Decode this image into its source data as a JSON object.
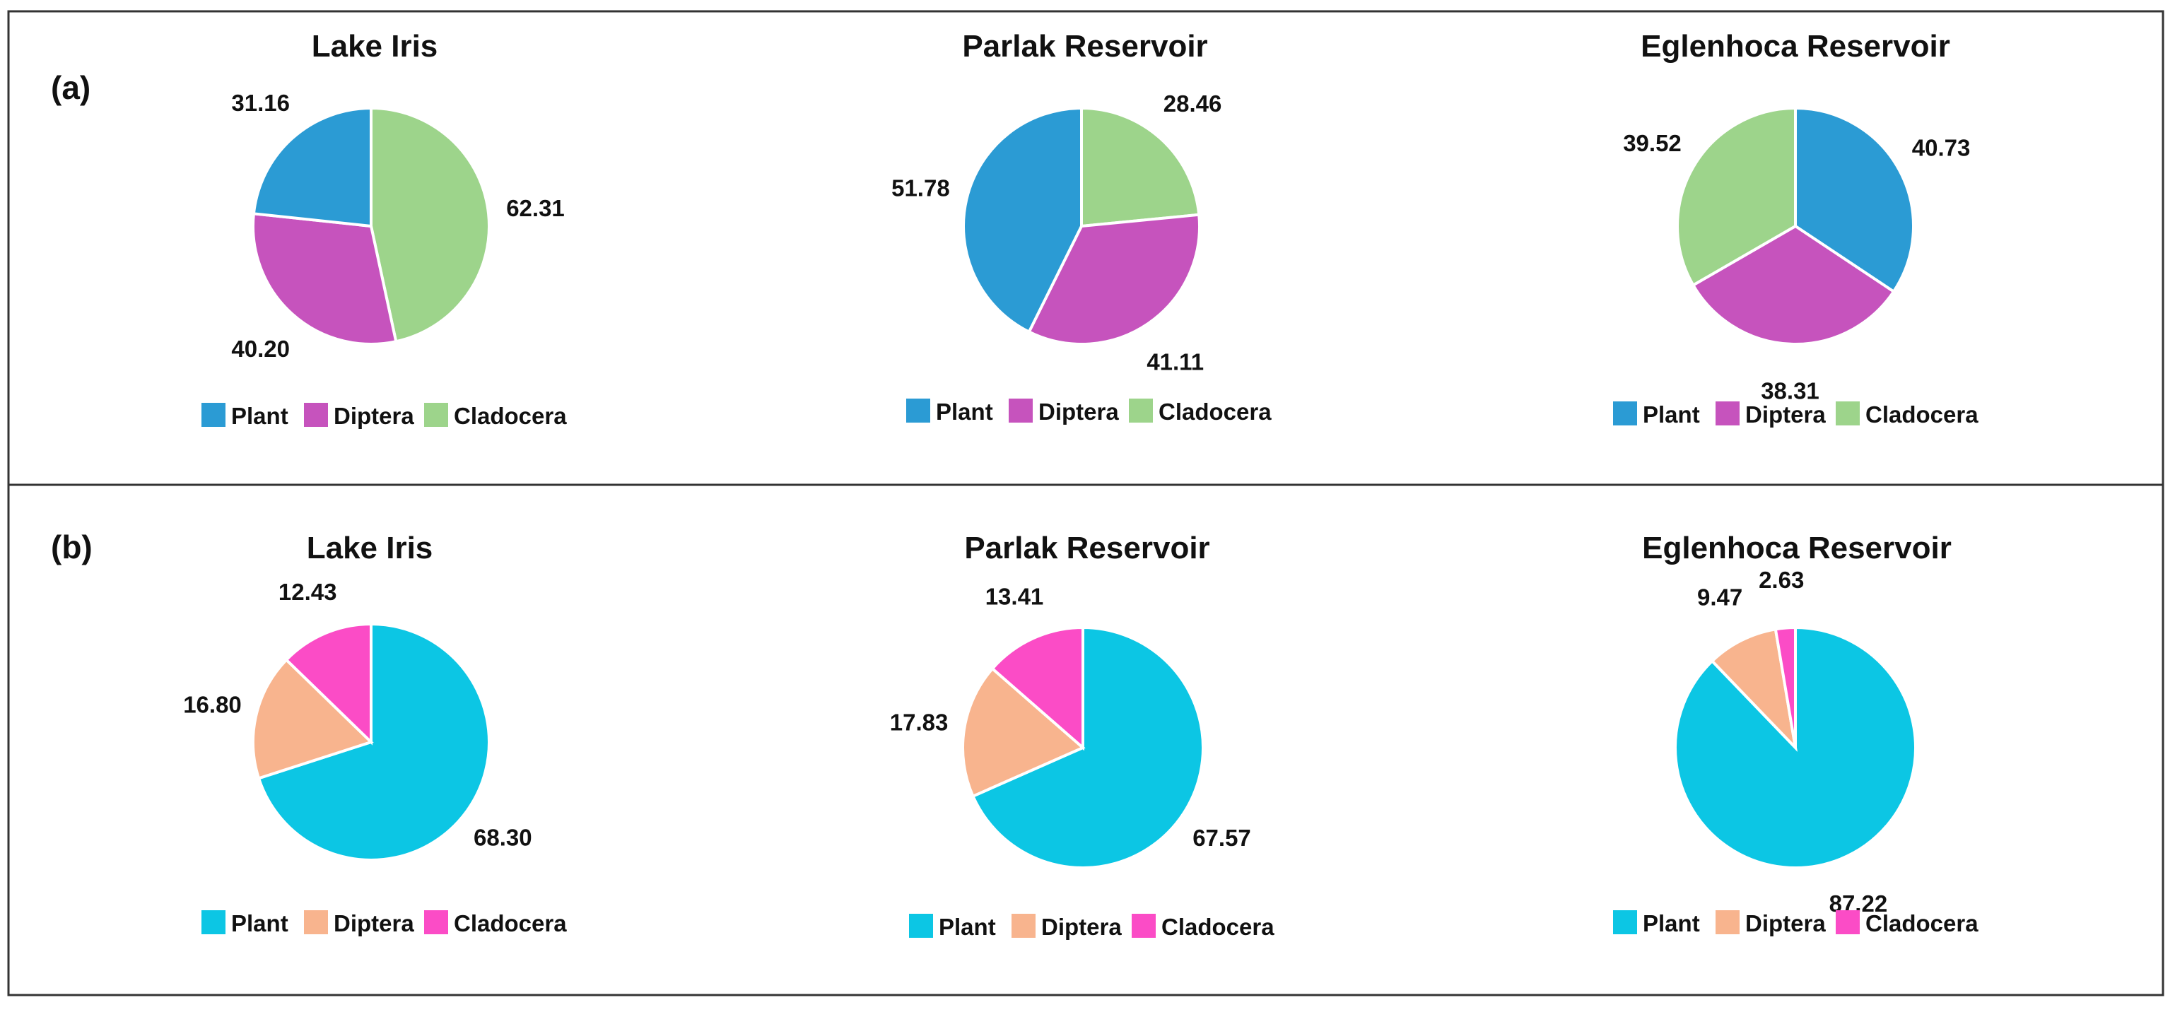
{
  "panels": [
    {
      "label": "(a)",
      "colors": {
        "Plant": "#2b9bd4",
        "Diptera": "#c653bd",
        "Cladocera": "#9dd48b"
      },
      "legend": [
        "Plant",
        "Diptera",
        "Cladocera"
      ]
    },
    {
      "label": "(b)",
      "colors": {
        "Plant": "#0cc6e4",
        "Diptera": "#f8b48e",
        "Cladocera": "#fb4cc6"
      },
      "legend": [
        "Plant",
        "Diptera",
        "Cladocera"
      ]
    }
  ],
  "chart_data": [
    {
      "type": "pie",
      "panel": "(a)",
      "title": "Lake Iris",
      "labels": [
        "Plant",
        "Diptera",
        "Cladocera"
      ],
      "values": [
        31.16,
        40.2,
        62.31
      ]
    },
    {
      "type": "pie",
      "panel": "(a)",
      "title": "Parlak Reservoir",
      "labels": [
        "Plant",
        "Diptera",
        "Cladocera"
      ],
      "values": [
        51.78,
        41.11,
        28.46
      ]
    },
    {
      "type": "pie",
      "panel": "(a)",
      "title": "Eglenhoca Reservoir",
      "labels": [
        "Plant",
        "Diptera",
        "Cladocera"
      ],
      "values": [
        40.73,
        38.31,
        39.52
      ]
    },
    {
      "type": "pie",
      "panel": "(b)",
      "title": "Lake Iris",
      "labels": [
        "Plant",
        "Diptera",
        "Cladocera"
      ],
      "values": [
        68.3,
        16.8,
        12.43
      ]
    },
    {
      "type": "pie",
      "panel": "(b)",
      "title": "Parlak Reservoir",
      "labels": [
        "Plant",
        "Diptera",
        "Cladocera"
      ],
      "values": [
        67.57,
        17.83,
        13.41
      ]
    },
    {
      "type": "pie",
      "panel": "(b)",
      "title": "Eglenhoca Reservoir",
      "labels": [
        "Plant",
        "Diptera",
        "Cladocera"
      ],
      "values": [
        87.22,
        9.47,
        2.63
      ]
    }
  ]
}
